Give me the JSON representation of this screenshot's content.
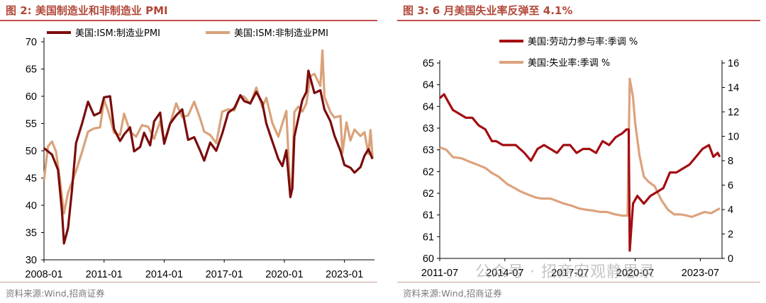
{
  "left": {
    "title": "图 2:  美国制造业和非制造业 PMI",
    "source": "资料来源:Wind,招商证券",
    "chart_data": {
      "type": "line",
      "title": "美国制造业和非制造业 PMI",
      "ylim": [
        30,
        70
      ],
      "yticks": [
        30,
        35,
        40,
        45,
        50,
        55,
        60,
        65,
        70
      ],
      "xlim": [
        2008.0,
        2024.5
      ],
      "xticks": [
        {
          "label": "2008-01",
          "t": 2008.0
        },
        {
          "label": "2011-01",
          "t": 2011.0
        },
        {
          "label": "2014-01",
          "t": 2014.0
        },
        {
          "label": "2017-01",
          "t": 2017.0
        },
        {
          "label": "2020-01",
          "t": 2020.0
        },
        {
          "label": "2023-01",
          "t": 2023.0
        }
      ],
      "series": [
        {
          "name": "美国:ISM:制造业PMI",
          "color": "#7b0c0c",
          "points": [
            [
              2008.0,
              50.5
            ],
            [
              2008.4,
              49.3
            ],
            [
              2008.7,
              46.5
            ],
            [
              2008.9,
              38.9
            ],
            [
              2009.0,
              33.0
            ],
            [
              2009.2,
              35.8
            ],
            [
              2009.4,
              42.8
            ],
            [
              2009.6,
              51.4
            ],
            [
              2009.9,
              55.0
            ],
            [
              2010.2,
              59.0
            ],
            [
              2010.5,
              56.5
            ],
            [
              2010.8,
              57.0
            ],
            [
              2011.0,
              59.8
            ],
            [
              2011.3,
              60.0
            ],
            [
              2011.5,
              54.0
            ],
            [
              2011.8,
              51.8
            ],
            [
              2012.0,
              53.0
            ],
            [
              2012.3,
              54.3
            ],
            [
              2012.5,
              49.9
            ],
            [
              2012.8,
              50.7
            ],
            [
              2013.0,
              53.3
            ],
            [
              2013.3,
              51.0
            ],
            [
              2013.5,
              55.4
            ],
            [
              2013.8,
              57.0
            ],
            [
              2014.0,
              51.3
            ],
            [
              2014.3,
              55.0
            ],
            [
              2014.6,
              56.5
            ],
            [
              2014.9,
              57.6
            ],
            [
              2015.2,
              52.0
            ],
            [
              2015.5,
              52.5
            ],
            [
              2015.8,
              50.0
            ],
            [
              2016.0,
              48.2
            ],
            [
              2016.3,
              51.5
            ],
            [
              2016.6,
              50.0
            ],
            [
              2016.9,
              53.2
            ],
            [
              2017.2,
              57.0
            ],
            [
              2017.5,
              57.8
            ],
            [
              2017.8,
              60.2
            ],
            [
              2018.0,
              59.1
            ],
            [
              2018.3,
              58.7
            ],
            [
              2018.6,
              60.8
            ],
            [
              2018.9,
              58.8
            ],
            [
              2019.1,
              55.0
            ],
            [
              2019.4,
              51.7
            ],
            [
              2019.7,
              48.5
            ],
            [
              2019.9,
              47.2
            ],
            [
              2020.1,
              50.1
            ],
            [
              2020.3,
              41.5
            ],
            [
              2020.4,
              43.1
            ],
            [
              2020.5,
              52.6
            ],
            [
              2020.7,
              56.0
            ],
            [
              2020.9,
              59.3
            ],
            [
              2021.1,
              60.8
            ],
            [
              2021.2,
              64.7
            ],
            [
              2021.5,
              60.6
            ],
            [
              2021.8,
              61.1
            ],
            [
              2022.0,
              57.6
            ],
            [
              2022.3,
              55.4
            ],
            [
              2022.5,
              52.8
            ],
            [
              2022.8,
              50.0
            ],
            [
              2023.0,
              47.4
            ],
            [
              2023.3,
              46.9
            ],
            [
              2023.5,
              46.0
            ],
            [
              2023.8,
              47.0
            ],
            [
              2024.0,
              49.1
            ],
            [
              2024.2,
              50.3
            ],
            [
              2024.4,
              48.5
            ]
          ]
        },
        {
          "name": "美国:ISM:非制造业PMI",
          "color": "#d9a27a",
          "points": [
            [
              2008.0,
              44.6
            ],
            [
              2008.2,
              50.8
            ],
            [
              2008.4,
              51.7
            ],
            [
              2008.6,
              49.9
            ],
            [
              2008.8,
              44.6
            ],
            [
              2009.0,
              38.5
            ],
            [
              2009.2,
              42.3
            ],
            [
              2009.4,
              44.2
            ],
            [
              2009.6,
              46.3
            ],
            [
              2009.9,
              49.8
            ],
            [
              2010.2,
              53.5
            ],
            [
              2010.5,
              54.1
            ],
            [
              2010.8,
              54.3
            ],
            [
              2011.0,
              59.4
            ],
            [
              2011.2,
              57.3
            ],
            [
              2011.5,
              53.3
            ],
            [
              2011.8,
              52.9
            ],
            [
              2012.0,
              56.8
            ],
            [
              2012.3,
              53.5
            ],
            [
              2012.6,
              52.6
            ],
            [
              2012.9,
              54.7
            ],
            [
              2013.2,
              54.4
            ],
            [
              2013.5,
              52.2
            ],
            [
              2013.8,
              55.4
            ],
            [
              2014.0,
              51.6
            ],
            [
              2014.3,
              55.0
            ],
            [
              2014.6,
              58.7
            ],
            [
              2014.9,
              56.2
            ],
            [
              2015.2,
              56.5
            ],
            [
              2015.5,
              59.0
            ],
            [
              2015.8,
              55.9
            ],
            [
              2016.0,
              53.5
            ],
            [
              2016.3,
              52.9
            ],
            [
              2016.6,
              51.4
            ],
            [
              2016.9,
              57.2
            ],
            [
              2017.2,
              57.6
            ],
            [
              2017.5,
              57.4
            ],
            [
              2017.8,
              60.1
            ],
            [
              2018.0,
              59.9
            ],
            [
              2018.3,
              58.6
            ],
            [
              2018.6,
              61.6
            ],
            [
              2018.9,
              58.0
            ],
            [
              2019.1,
              59.7
            ],
            [
              2019.4,
              55.1
            ],
            [
              2019.7,
              52.6
            ],
            [
              2019.9,
              55.0
            ],
            [
              2020.1,
              57.3
            ],
            [
              2020.3,
              41.8
            ],
            [
              2020.4,
              45.4
            ],
            [
              2020.5,
              57.1
            ],
            [
              2020.7,
              58.1
            ],
            [
              2020.9,
              57.2
            ],
            [
              2021.1,
              58.7
            ],
            [
              2021.3,
              63.7
            ],
            [
              2021.5,
              64.1
            ],
            [
              2021.8,
              61.9
            ],
            [
              2021.9,
              68.4
            ],
            [
              2022.0,
              59.9
            ],
            [
              2022.3,
              57.1
            ],
            [
              2022.5,
              56.1
            ],
            [
              2022.8,
              56.4
            ],
            [
              2022.9,
              49.6
            ],
            [
              2023.1,
              55.2
            ],
            [
              2023.3,
              51.9
            ],
            [
              2023.5,
              53.9
            ],
            [
              2023.8,
              52.7
            ],
            [
              2024.0,
              53.4
            ],
            [
              2024.2,
              49.4
            ],
            [
              2024.3,
              53.8
            ],
            [
              2024.4,
              48.8
            ]
          ]
        }
      ]
    }
  },
  "right": {
    "title": "图 3:  6 月美国失业率反弹至 4.1%",
    "source": "资料来源:Wind,招商证券",
    "watermark": "公众号 · 招商宏观静思录",
    "chart_data": {
      "type": "line",
      "title": "6 月美国失业率反弹至 4.1%",
      "y_left": {
        "ylim": [
          60,
          65
        ],
        "tick_labels": [
          "60",
          "61",
          "61",
          "62",
          "62",
          "63",
          "63",
          "64",
          "64",
          "65"
        ]
      },
      "y_right": {
        "ylim": [
          0,
          16
        ],
        "yticks": [
          0,
          2,
          4,
          6,
          8,
          10,
          12,
          14,
          16
        ]
      },
      "xlim": [
        2011.5,
        2024.5
      ],
      "xticks": [
        {
          "label": "2011-07",
          "t": 2011.5
        },
        {
          "label": "2014-07",
          "t": 2014.5
        },
        {
          "label": "2017-07",
          "t": 2017.5
        },
        {
          "label": "2020-07",
          "t": 2020.5
        },
        {
          "label": "2023-07",
          "t": 2023.5
        }
      ],
      "series": [
        {
          "name": "美国:劳动力参与率:季调 %",
          "axis": "left",
          "color": "#a30d12",
          "points": [
            [
              2011.5,
              64.1
            ],
            [
              2011.7,
              64.2
            ],
            [
              2011.9,
              64.0
            ],
            [
              2012.1,
              63.8
            ],
            [
              2012.4,
              63.7
            ],
            [
              2012.7,
              63.6
            ],
            [
              2013.0,
              63.6
            ],
            [
              2013.3,
              63.4
            ],
            [
              2013.6,
              63.3
            ],
            [
              2013.9,
              63.0
            ],
            [
              2014.1,
              63.0
            ],
            [
              2014.4,
              62.9
            ],
            [
              2014.7,
              62.9
            ],
            [
              2015.0,
              62.9
            ],
            [
              2015.4,
              62.7
            ],
            [
              2015.7,
              62.5
            ],
            [
              2016.0,
              62.8
            ],
            [
              2016.3,
              62.9
            ],
            [
              2016.6,
              62.8
            ],
            [
              2016.9,
              62.7
            ],
            [
              2017.2,
              62.9
            ],
            [
              2017.5,
              62.9
            ],
            [
              2017.8,
              62.7
            ],
            [
              2018.1,
              62.8
            ],
            [
              2018.4,
              62.8
            ],
            [
              2018.7,
              62.7
            ],
            [
              2019.0,
              63.0
            ],
            [
              2019.3,
              62.9
            ],
            [
              2019.6,
              63.1
            ],
            [
              2019.9,
              63.2
            ],
            [
              2020.1,
              63.3
            ],
            [
              2020.2,
              63.3
            ],
            [
              2020.25,
              60.2
            ],
            [
              2020.4,
              61.4
            ],
            [
              2020.6,
              61.6
            ],
            [
              2020.9,
              61.4
            ],
            [
              2021.2,
              61.6
            ],
            [
              2021.5,
              61.7
            ],
            [
              2021.8,
              61.8
            ],
            [
              2022.1,
              62.2
            ],
            [
              2022.4,
              62.2
            ],
            [
              2022.7,
              62.3
            ],
            [
              2023.0,
              62.4
            ],
            [
              2023.3,
              62.6
            ],
            [
              2023.6,
              62.8
            ],
            [
              2023.9,
              62.9
            ],
            [
              2024.1,
              62.6
            ],
            [
              2024.3,
              62.7
            ],
            [
              2024.4,
              62.6
            ]
          ]
        },
        {
          "name": "美国:失业率:季调 %",
          "axis": "right",
          "color": "#dda27d",
          "points": [
            [
              2011.5,
              9.1
            ],
            [
              2011.8,
              8.9
            ],
            [
              2012.1,
              8.3
            ],
            [
              2012.5,
              8.2
            ],
            [
              2012.9,
              7.9
            ],
            [
              2013.2,
              7.7
            ],
            [
              2013.6,
              7.4
            ],
            [
              2013.9,
              7.0
            ],
            [
              2014.2,
              6.7
            ],
            [
              2014.6,
              6.1
            ],
            [
              2014.9,
              5.8
            ],
            [
              2015.2,
              5.5
            ],
            [
              2015.6,
              5.2
            ],
            [
              2015.9,
              5.0
            ],
            [
              2016.2,
              4.9
            ],
            [
              2016.6,
              4.9
            ],
            [
              2016.9,
              4.7
            ],
            [
              2017.2,
              4.5
            ],
            [
              2017.6,
              4.3
            ],
            [
              2017.9,
              4.1
            ],
            [
              2018.2,
              4.0
            ],
            [
              2018.6,
              3.9
            ],
            [
              2018.9,
              3.8
            ],
            [
              2019.2,
              3.8
            ],
            [
              2019.6,
              3.6
            ],
            [
              2019.9,
              3.5
            ],
            [
              2020.15,
              3.5
            ],
            [
              2020.25,
              14.7
            ],
            [
              2020.4,
              13.2
            ],
            [
              2020.5,
              11.1
            ],
            [
              2020.7,
              8.4
            ],
            [
              2020.9,
              6.7
            ],
            [
              2021.1,
              6.3
            ],
            [
              2021.4,
              5.9
            ],
            [
              2021.7,
              4.8
            ],
            [
              2022.0,
              4.0
            ],
            [
              2022.3,
              3.6
            ],
            [
              2022.6,
              3.6
            ],
            [
              2022.9,
              3.5
            ],
            [
              2023.1,
              3.4
            ],
            [
              2023.4,
              3.6
            ],
            [
              2023.7,
              3.8
            ],
            [
              2024.0,
              3.7
            ],
            [
              2024.2,
              3.9
            ],
            [
              2024.4,
              4.1
            ]
          ]
        }
      ]
    }
  }
}
